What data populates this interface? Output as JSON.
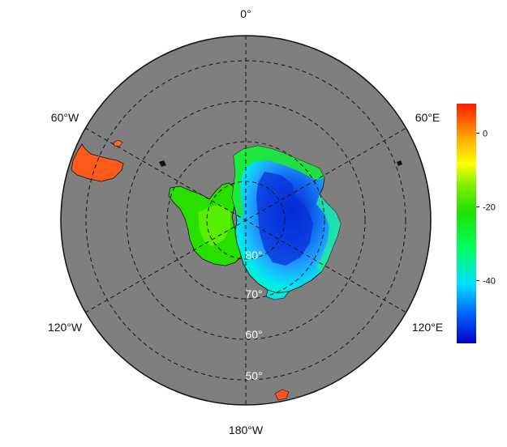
{
  "map": {
    "projection": "south-polar-stereographic",
    "lon_labels": [
      "0°",
      "60°E",
      "120°E",
      "180°W",
      "120°W",
      "60°W"
    ],
    "lat_labels": [
      "80°",
      "70°",
      "60°",
      "50°"
    ],
    "ocean_color": "#7f7f7f",
    "graticule": "dashed"
  },
  "colorbar": {
    "ticks": [
      "0",
      "-20",
      "-40"
    ],
    "tick_values": [
      0,
      -20,
      -40
    ],
    "range": [
      -57,
      8
    ],
    "colormap": [
      "#0000c8",
      "#0060ff",
      "#00e0ff",
      "#00ff60",
      "#20e000",
      "#80f000",
      "#ffff00",
      "#ffb000",
      "#ff6000",
      "#ff1a00"
    ]
  }
}
